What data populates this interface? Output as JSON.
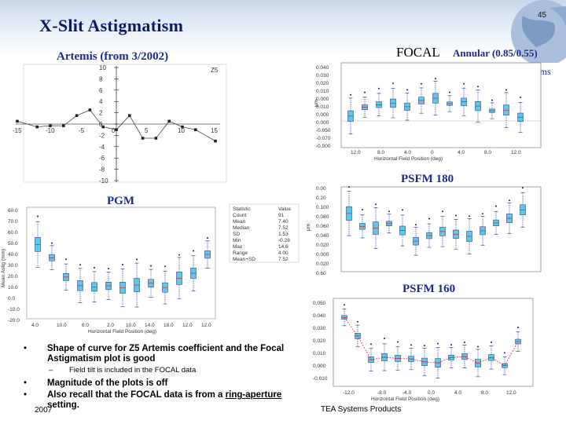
{
  "slide": {
    "title": "X-Slit Astigmatism",
    "number": "45",
    "year": "2007",
    "footer": "TEA Systems Products"
  },
  "labels": {
    "focal_main": "FOCAL",
    "annular": "Annular (0.85/0.55)",
    "partial_right_word": "tems",
    "artemis": "Artemis (from 3/2002)",
    "pgm": "PGM",
    "psfm180": "PSFM 180",
    "psfm160": "PSFM 160"
  },
  "artemis_chart": {
    "series_label": "Z5",
    "y_ticks": [
      "10",
      "8",
      "6",
      "4",
      "2",
      "0",
      "-2",
      "-4",
      "-6",
      "-8",
      "-10"
    ],
    "x_ticks": [
      "-15",
      "-10",
      "-5",
      "0",
      "5",
      "10",
      "15"
    ]
  },
  "bullets": [
    {
      "text": "Shape of curve for Z5 Artemis coefficient and the Focal Astigmatism plot is good"
    },
    {
      "sub": "Field tilt is included in the FOCAL data"
    },
    {
      "text": "Magnitude of the plots is off"
    },
    {
      "text_before": "Also recall that the FOCAL data is from a ",
      "link": "ring-aperture",
      "text_after": " setting."
    }
  ],
  "colors": {
    "title_navy": "#0b1a6b",
    "label_blue": "#1a2b8c",
    "box_cyan": "#5fc8e8",
    "median_red": "#d42020",
    "whisker_navy": "#1a2b80"
  },
  "chart_data": [
    {
      "type": "line",
      "title": "Artemis (from 3/2002)",
      "series": [
        {
          "name": "Z5",
          "x": [
            -15,
            -12,
            -10,
            -8,
            -6,
            -4,
            -2,
            0,
            2,
            4,
            6,
            8,
            10,
            12,
            15
          ],
          "y": [
            0.5,
            -0.5,
            -0.3,
            -0.3,
            1.5,
            2.5,
            -0.5,
            -1,
            1.5,
            -2.5,
            -2.5,
            0.5,
            -0.5,
            -1,
            -3
          ]
        }
      ],
      "xlim": [
        -15,
        15
      ],
      "ylim": [
        -10,
        10
      ],
      "grid": false
    }
  ]
}
